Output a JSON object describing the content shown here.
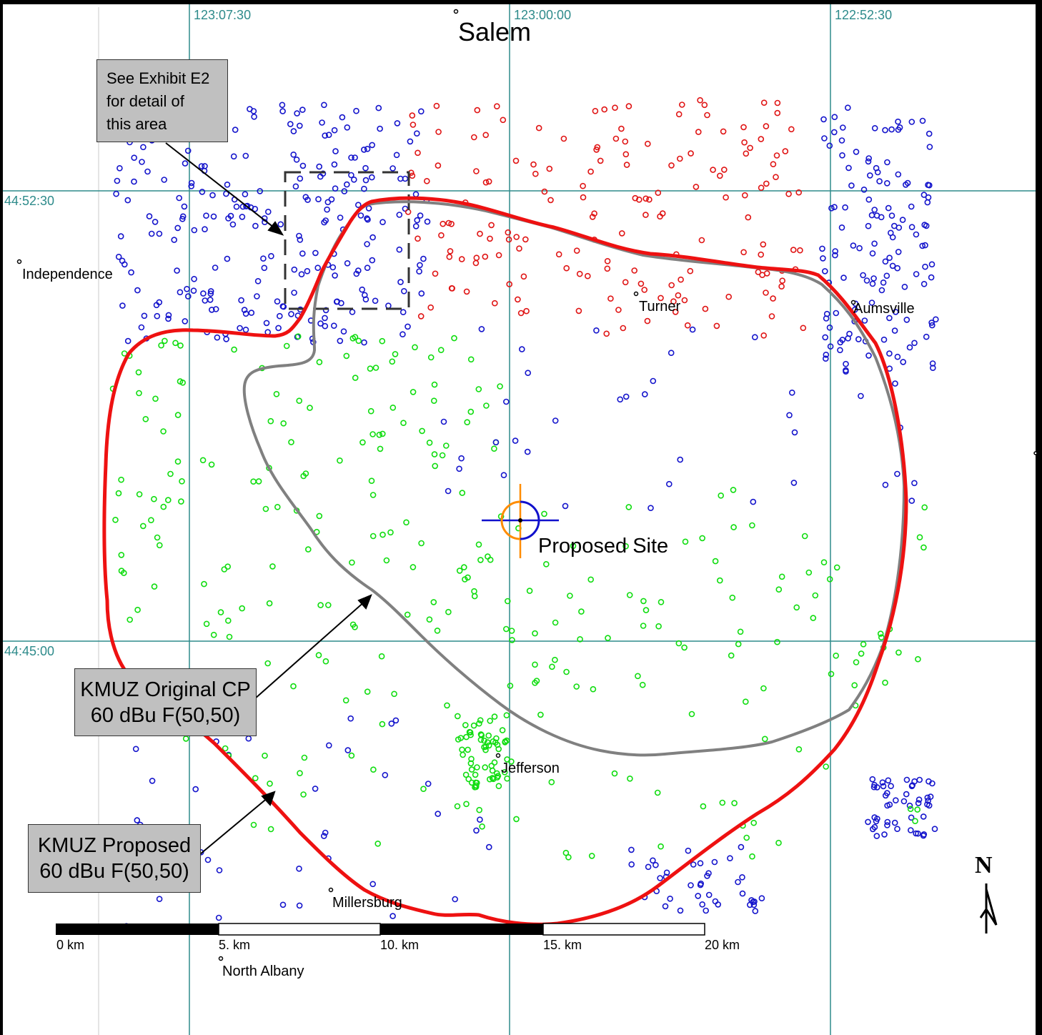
{
  "grid": {
    "longitude_labels": [
      "123:07:30",
      "123:00:00",
      "122:52:30"
    ],
    "latitude_labels": [
      "44:52:30",
      "44:45:00"
    ]
  },
  "towns": {
    "salem": "Salem",
    "independence": "Independence",
    "turner": "Turner",
    "aumsville": "Aumsville",
    "jefferson": "Jefferson",
    "millersburg": "Millersburg",
    "north_albany": "North Albany"
  },
  "site_label": "Proposed Site",
  "callouts": {
    "exhibit": [
      "See Exhibit E2",
      "for detail of",
      "this area"
    ],
    "original": [
      "KMUZ Original CP",
      "60 dBu F(50,50)"
    ],
    "proposed": [
      "KMUZ Proposed",
      "60 dBu F(50,50)"
    ]
  },
  "scale_bar": {
    "labels": [
      "0 km",
      "5. km",
      "10. km",
      "15. km",
      "20 km"
    ]
  },
  "north_arrow": "N",
  "colors": {
    "proposed_contour": "#ee1111",
    "original_contour": "#808080",
    "grid": "#2e8b8b",
    "points_blue": "#1515cc",
    "points_red": "#e01515",
    "points_green": "#10dd10",
    "site_cross_blue": "#1010cc",
    "site_cross_orange": "#ff8c00",
    "callout_fill": "#c0c0c0"
  },
  "point_clusters": [
    {
      "color": "blue",
      "count": 260,
      "area": "north-west (Keizer / Salem)"
    },
    {
      "color": "red",
      "count": 170,
      "area": "north-east (Salem / Turner)"
    },
    {
      "color": "blue",
      "count": 130,
      "area": "east (Aumsville)"
    },
    {
      "color": "green",
      "count": 140,
      "area": "south-west"
    },
    {
      "color": "green",
      "count": 60,
      "area": "Jefferson"
    },
    {
      "color": "blue",
      "count": 50,
      "area": "south-east"
    }
  ]
}
